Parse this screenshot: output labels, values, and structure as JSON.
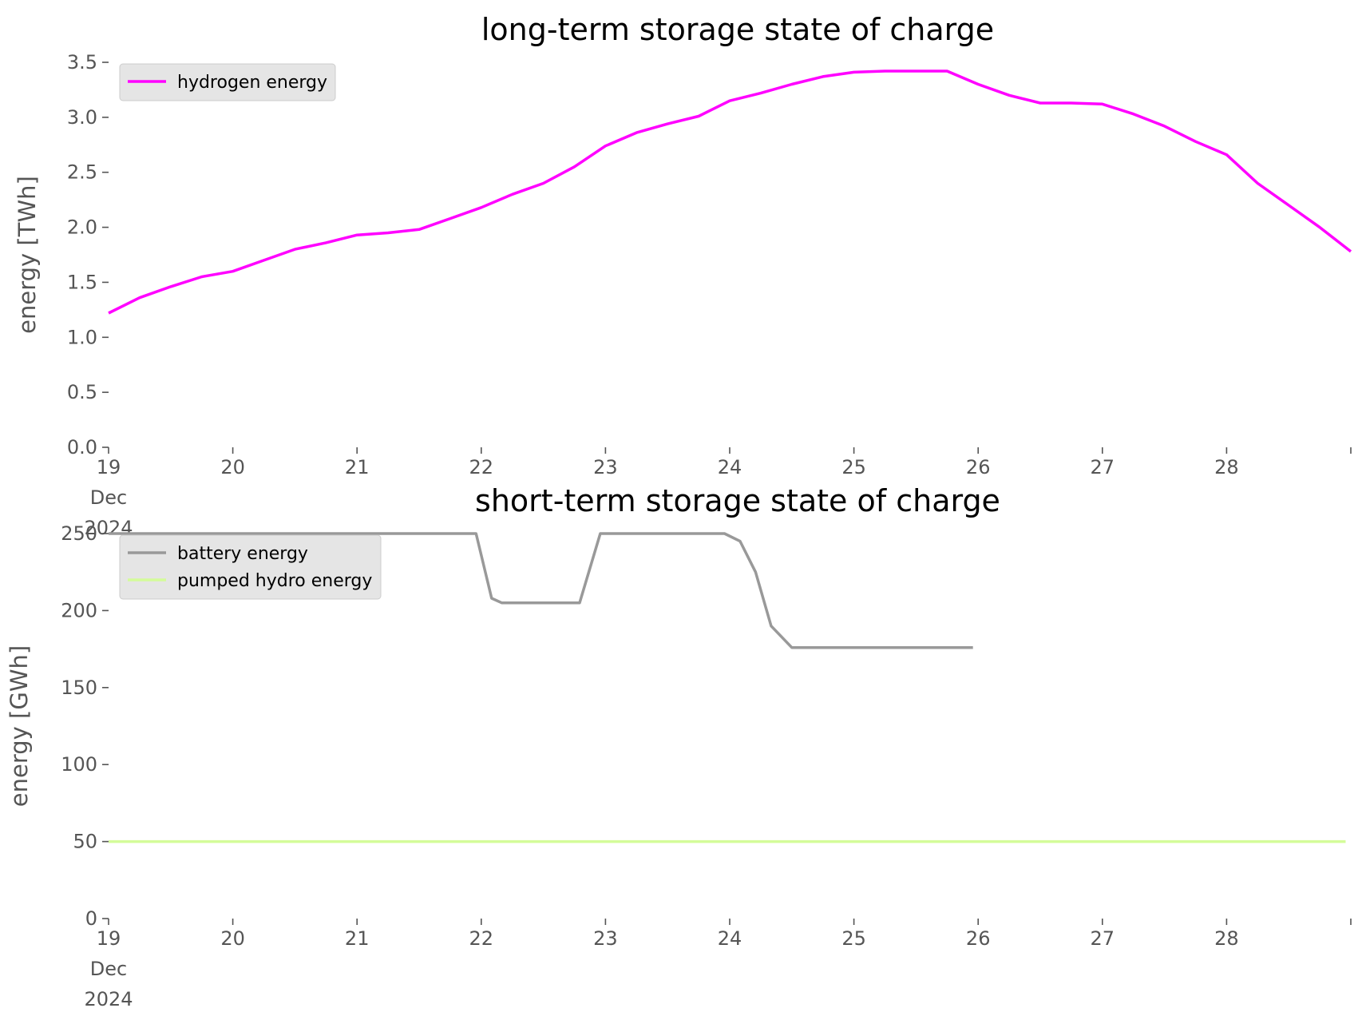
{
  "chart_data": [
    {
      "type": "line",
      "title": "long-term storage state of charge",
      "xlabel": "",
      "ylabel": "energy [TWh]",
      "x_unit": "day",
      "xlim": [
        "2024-12-19 00:00",
        "2024-12-29 00:00"
      ],
      "x_ticks": [
        {
          "x": "2024-12-19",
          "lines": [
            "19",
            "Dec",
            "2024"
          ]
        },
        {
          "x": "2024-12-20",
          "lines": [
            "20"
          ]
        },
        {
          "x": "2024-12-21",
          "lines": [
            "21"
          ]
        },
        {
          "x": "2024-12-22",
          "lines": [
            "22"
          ]
        },
        {
          "x": "2024-12-23",
          "lines": [
            "23"
          ]
        },
        {
          "x": "2024-12-24",
          "lines": [
            "24"
          ]
        },
        {
          "x": "2024-12-25",
          "lines": [
            "25"
          ]
        },
        {
          "x": "2024-12-26",
          "lines": [
            "26"
          ]
        },
        {
          "x": "2024-12-27",
          "lines": [
            "27"
          ]
        },
        {
          "x": "2024-12-28",
          "lines": [
            "28"
          ]
        }
      ],
      "ylim": [
        0,
        3.5
      ],
      "y_ticks": [
        "0.0",
        "0.5",
        "1.0",
        "1.5",
        "2.0",
        "2.5",
        "3.0",
        "3.5"
      ],
      "grid": false,
      "legend": "top-left",
      "series": [
        {
          "name": "hydrogen energy",
          "color": "#ff00ff",
          "points": [
            [
              "2024-12-19 00:00",
              1.22
            ],
            [
              "2024-12-19 06:00",
              1.36
            ],
            [
              "2024-12-19 12:00",
              1.46
            ],
            [
              "2024-12-19 18:00",
              1.55
            ],
            [
              "2024-12-20 00:00",
              1.6
            ],
            [
              "2024-12-20 06:00",
              1.7
            ],
            [
              "2024-12-20 12:00",
              1.8
            ],
            [
              "2024-12-20 18:00",
              1.86
            ],
            [
              "2024-12-21 00:00",
              1.93
            ],
            [
              "2024-12-21 06:00",
              1.95
            ],
            [
              "2024-12-21 12:00",
              1.98
            ],
            [
              "2024-12-21 18:00",
              2.08
            ],
            [
              "2024-12-22 00:00",
              2.18
            ],
            [
              "2024-12-22 06:00",
              2.3
            ],
            [
              "2024-12-22 12:00",
              2.4
            ],
            [
              "2024-12-22 18:00",
              2.55
            ],
            [
              "2024-12-23 00:00",
              2.74
            ],
            [
              "2024-12-23 06:00",
              2.86
            ],
            [
              "2024-12-23 12:00",
              2.94
            ],
            [
              "2024-12-23 18:00",
              3.01
            ],
            [
              "2024-12-24 00:00",
              3.15
            ],
            [
              "2024-12-24 06:00",
              3.22
            ],
            [
              "2024-12-24 12:00",
              3.3
            ],
            [
              "2024-12-24 18:00",
              3.37
            ],
            [
              "2024-12-25 00:00",
              3.41
            ],
            [
              "2024-12-25 06:00",
              3.42
            ],
            [
              "2024-12-25 12:00",
              3.42
            ],
            [
              "2024-12-25 18:00",
              3.42
            ],
            [
              "2024-12-26 00:00",
              3.3
            ],
            [
              "2024-12-26 06:00",
              3.2
            ],
            [
              "2024-12-26 12:00",
              3.13
            ],
            [
              "2024-12-26 18:00",
              3.13
            ],
            [
              "2024-12-27 00:00",
              3.12
            ],
            [
              "2024-12-27 06:00",
              3.03
            ],
            [
              "2024-12-27 12:00",
              2.92
            ],
            [
              "2024-12-27 18:00",
              2.78
            ],
            [
              "2024-12-28 00:00",
              2.66
            ],
            [
              "2024-12-28 06:00",
              2.4
            ],
            [
              "2024-12-28 12:00",
              2.2
            ],
            [
              "2024-12-28 18:00",
              2.0
            ],
            [
              "2024-12-29 00:00",
              1.78
            ]
          ]
        }
      ]
    },
    {
      "type": "line",
      "title": "short-term storage state of charge",
      "xlabel": "",
      "ylabel": "energy [GWh]",
      "x_unit": "day",
      "xlim": [
        "2024-12-19 00:00",
        "2024-12-29 00:00"
      ],
      "x_ticks": [
        {
          "x": "2024-12-19",
          "lines": [
            "19",
            "Dec",
            "2024"
          ]
        },
        {
          "x": "2024-12-20",
          "lines": [
            "20"
          ]
        },
        {
          "x": "2024-12-21",
          "lines": [
            "21"
          ]
        },
        {
          "x": "2024-12-22",
          "lines": [
            "22"
          ]
        },
        {
          "x": "2024-12-23",
          "lines": [
            "23"
          ]
        },
        {
          "x": "2024-12-24",
          "lines": [
            "24"
          ]
        },
        {
          "x": "2024-12-25",
          "lines": [
            "25"
          ]
        },
        {
          "x": "2024-12-26",
          "lines": [
            "26"
          ]
        },
        {
          "x": "2024-12-27",
          "lines": [
            "27"
          ]
        },
        {
          "x": "2024-12-28",
          "lines": [
            "28"
          ]
        }
      ],
      "ylim": [
        0,
        260
      ],
      "y_ticks": [
        "0",
        "50",
        "100",
        "150",
        "200",
        "250"
      ],
      "grid": false,
      "legend": "top-left",
      "series": [
        {
          "name": "battery energy",
          "color": "#999999",
          "points": [
            [
              "2024-12-19 00:00",
              250
            ],
            [
              "2024-12-21 23:00",
              250
            ],
            [
              "2024-12-22 02:00",
              208
            ],
            [
              "2024-12-22 04:00",
              205
            ],
            [
              "2024-12-22 19:00",
              205
            ],
            [
              "2024-12-22 23:00",
              250
            ],
            [
              "2024-12-23 23:00",
              250
            ],
            [
              "2024-12-24 02:00",
              245
            ],
            [
              "2024-12-24 05:00",
              225
            ],
            [
              "2024-12-24 08:00",
              190
            ],
            [
              "2024-12-24 12:00",
              176
            ],
            [
              "2024-12-24 14:00",
              176
            ],
            [
              "2024-12-24 14:00",
              176
            ],
            [
              "2024-12-24 15:00",
              176
            ],
            [
              "2024-12-24 17:00",
              176
            ],
            [
              "2024-12-24 18:00",
              176
            ],
            [
              "2024-12-24 19:00",
              176
            ],
            [
              "2024-12-24 20:00",
              176
            ],
            [
              "2024-12-24 21:00",
              176
            ],
            [
              "2024-12-24 22:00",
              176
            ],
            [
              "2024-12-24 23:00",
              176
            ],
            [
              "2024-12-25 00:00",
              176
            ],
            [
              "2024-12-25 01:00",
              176
            ],
            [
              "2024-12-25 02:00",
              176
            ],
            [
              "2024-12-25 03:00",
              176
            ],
            [
              "2024-12-25 04:00",
              176
            ],
            [
              "2024-12-25 05:00",
              176
            ],
            [
              "2024-12-25 06:00",
              176
            ],
            [
              "2024-12-25 07:00",
              176
            ],
            [
              "2024-12-25 08:00",
              176
            ],
            [
              "2024-12-25 09:00",
              176
            ],
            [
              "2024-12-25 10:00",
              176
            ],
            [
              "2024-12-25 11:00",
              176
            ],
            [
              "2024-12-25 12:00",
              176
            ],
            [
              "2024-12-25 13:00",
              176
            ],
            [
              "2024-12-25 14:00",
              176
            ],
            [
              "2024-12-25 15:00",
              176
            ],
            [
              "2024-12-25 16:00",
              176
            ],
            [
              "2024-12-25 17:00",
              176
            ],
            [
              "2024-12-25 18:00",
              176
            ],
            [
              "2024-12-25 19:00",
              176
            ],
            [
              "2024-12-25 20:00",
              176
            ],
            [
              "2024-12-25 21:00",
              176
            ],
            [
              "2024-12-25 22:00",
              176
            ],
            [
              "2024-12-25 23:00",
              176
            ]
          ]
        },
        {
          "name": "pumped hydro energy",
          "color": "#d4fc9a",
          "points": [
            [
              "2024-12-19 00:00",
              50
            ],
            [
              "2024-12-28 23:00",
              50
            ]
          ]
        }
      ]
    }
  ]
}
